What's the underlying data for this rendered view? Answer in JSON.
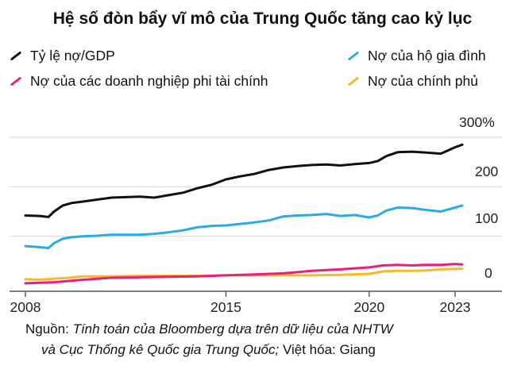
{
  "title": "Hệ số đòn bẩy vĩ mô của Trung Quốc tăng cao kỷ lục",
  "chart_data": {
    "type": "line",
    "title": "Hệ số đòn bẩy vĩ mô của Trung Quốc tăng cao kỷ lục",
    "xlabel": "",
    "ylabel": "",
    "x_ticks": [
      "2008",
      "2015",
      "2020",
      "2023"
    ],
    "y_ticks": [
      "300%",
      "200",
      "100",
      "0"
    ],
    "xlim": [
      2008,
      2024.5
    ],
    "ylim": [
      -20,
      300
    ],
    "grid": "horizontal",
    "legend_position": "top",
    "series": [
      {
        "name": "Tỷ lệ nợ/GDP",
        "color": "#111111",
        "x": [
          2008.0,
          2008.5,
          2008.8,
          2009.0,
          2009.3,
          2009.6,
          2010.0,
          2010.5,
          2011.0,
          2011.5,
          2012.0,
          2012.5,
          2013.0,
          2013.5,
          2014.0,
          2014.5,
          2015.0,
          2015.5,
          2016.0,
          2016.5,
          2017.0,
          2017.5,
          2018.0,
          2018.5,
          2019.0,
          2019.5,
          2020.0,
          2020.3,
          2020.6,
          2021.0,
          2021.5,
          2022.0,
          2022.5,
          2023.0,
          2023.25
        ],
        "y": [
          142,
          141,
          139,
          150,
          162,
          167,
          170,
          174,
          178,
          179,
          180,
          178,
          183,
          188,
          197,
          204,
          215,
          221,
          226,
          234,
          239,
          242,
          244,
          245,
          243,
          246,
          248,
          252,
          262,
          270,
          271,
          269,
          267,
          280,
          285
        ]
      },
      {
        "name": "Nợ của hộ gia đình",
        "color": "#2aaae6",
        "x": [
          2008.0,
          2008.5,
          2008.8,
          2009.0,
          2009.3,
          2009.6,
          2010.0,
          2010.5,
          2011.0,
          2011.5,
          2012.0,
          2012.5,
          2013.0,
          2013.5,
          2014.0,
          2014.5,
          2015.0,
          2015.5,
          2016.0,
          2016.5,
          2017.0,
          2017.5,
          2018.0,
          2018.5,
          2019.0,
          2019.5,
          2020.0,
          2020.3,
          2020.6,
          2021.0,
          2021.5,
          2022.0,
          2022.5,
          2023.0,
          2023.25
        ],
        "y": [
          80,
          78,
          76,
          86,
          95,
          98,
          100,
          101,
          103,
          103,
          103,
          105,
          108,
          112,
          118,
          121,
          122,
          125,
          128,
          132,
          140,
          142,
          143,
          145,
          141,
          143,
          138,
          142,
          152,
          158,
          157,
          153,
          150,
          158,
          162
        ]
      },
      {
        "name": "Nợ của các doanh nghiệp phi tài chính",
        "color": "#e8207a",
        "x": [
          2008.0,
          2009.0,
          2010.0,
          2011.0,
          2012.0,
          2013.0,
          2014.0,
          2015.0,
          2016.0,
          2017.0,
          2018.0,
          2019.0,
          2020.0,
          2020.5,
          2021.0,
          2021.5,
          2022.0,
          2022.5,
          2023.0,
          2023.25
        ],
        "y": [
          5,
          7,
          12,
          16,
          17,
          18,
          19,
          21,
          23,
          25,
          30,
          33,
          37,
          41,
          42,
          41,
          42,
          42,
          44,
          43
        ]
      },
      {
        "name": "Nợ của chính phủ",
        "color": "#f7b928",
        "x": [
          2008.0,
          2008.5,
          2009.0,
          2009.5,
          2010.0,
          2011.0,
          2012.0,
          2013.0,
          2014.0,
          2015.0,
          2016.0,
          2017.0,
          2018.0,
          2019.0,
          2020.0,
          2020.5,
          2021.0,
          2021.5,
          2022.0,
          2022.5,
          2023.0,
          2023.25
        ],
        "y": [
          13,
          12,
          14,
          16,
          19,
          19,
          20,
          20,
          20,
          21,
          21,
          21,
          21,
          22,
          24,
          29,
          30,
          30,
          31,
          33,
          34,
          34
        ]
      }
    ]
  },
  "source": {
    "label": "Nguồn:",
    "text1": "Tính toán của Bloomberg dựa trên dữ liệu của NHTW",
    "text2": "và Cục Thống kê Quốc gia Trung Quốc;",
    "text3": "Việt hóa: Giang"
  }
}
